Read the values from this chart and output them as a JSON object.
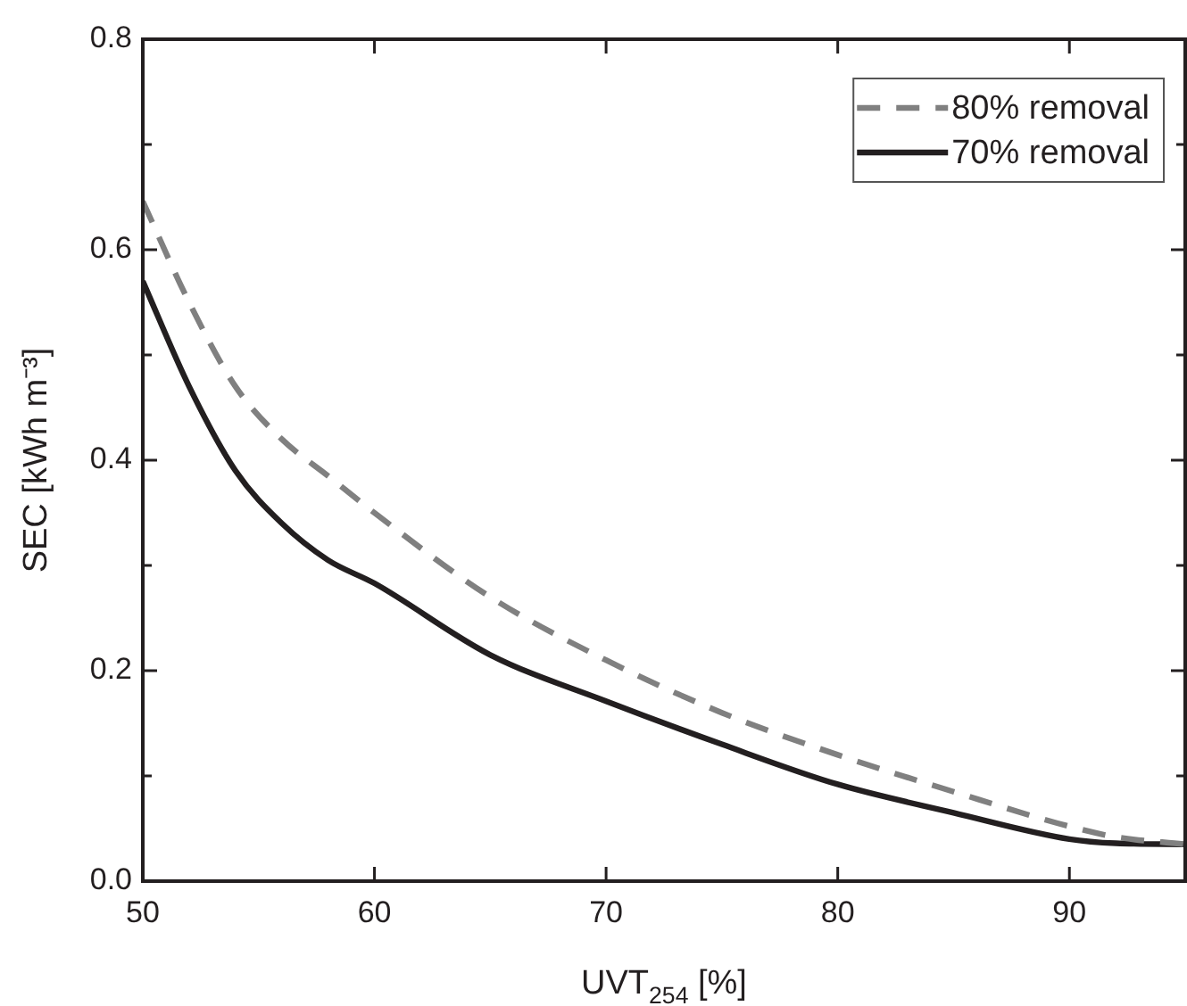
{
  "chart_data": {
    "type": "line",
    "xlabel": "UVT$_{254}$ [%]",
    "ylabel": "SEC [kWh m⁻³]",
    "xlim": [
      50,
      95
    ],
    "xticks": [
      50,
      60,
      70,
      80,
      90
    ],
    "ylim": [
      0,
      0.8
    ],
    "yticks": [
      {
        "value": 0,
        "label": "0.0"
      },
      {
        "value": 0.1,
        "label": null
      },
      0.2,
      {
        "value": 0.3,
        "label": null
      },
      0.4,
      {
        "value": 0.5,
        "label": null
      },
      0.6,
      {
        "value": 0.7,
        "label": null
      },
      0.8
    ],
    "legend": "top right",
    "grid": false,
    "marker": "none",
    "series": [
      {
        "name": "80% removal",
        "color": "#808080",
        "line_style": "dashed",
        "x": [
          50,
          52,
          54,
          56,
          58,
          60,
          65,
          70,
          75,
          80,
          85,
          90,
          92,
          95
        ],
        "values": [
          0.646,
          0.55,
          0.47,
          0.42,
          0.385,
          0.35,
          0.27,
          0.21,
          0.16,
          0.12,
          0.085,
          0.052,
          0.042,
          0.035
        ]
      },
      {
        "name": "70% removal",
        "color": "#231f20",
        "line_style": "solid",
        "x": [
          50,
          52,
          54,
          56,
          58,
          60,
          65,
          70,
          75,
          80,
          85,
          90,
          92,
          95
        ],
        "values": [
          0.57,
          0.47,
          0.39,
          0.34,
          0.305,
          0.283,
          0.215,
          0.171,
          0.13,
          0.092,
          0.065,
          0.04,
          0.036,
          0.035
        ]
      }
    ]
  }
}
